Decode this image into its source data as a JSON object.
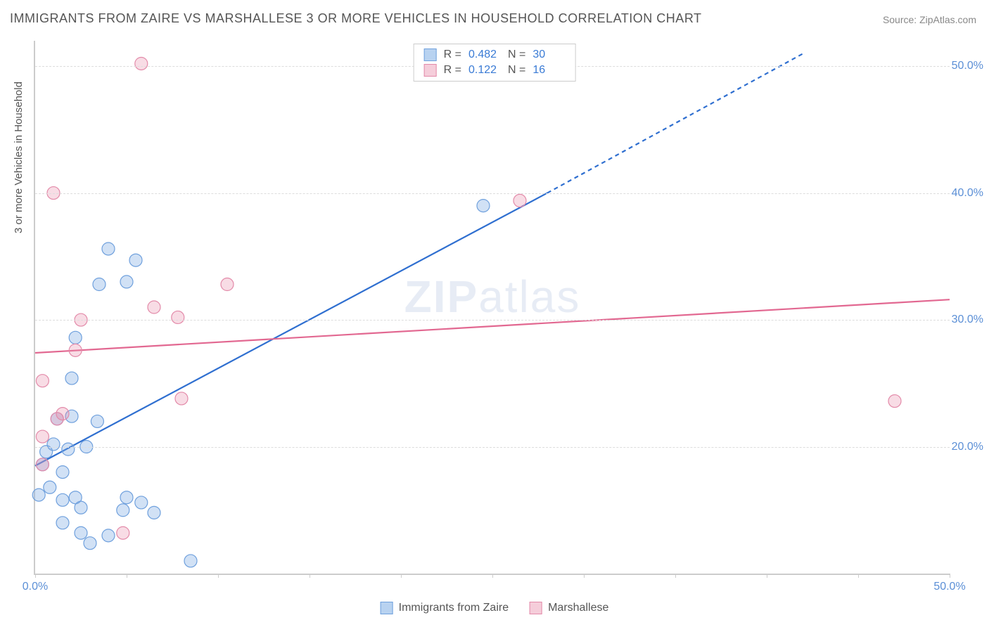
{
  "title": "IMMIGRANTS FROM ZAIRE VS MARSHALLESE 3 OR MORE VEHICLES IN HOUSEHOLD CORRELATION CHART",
  "source": "Source: ZipAtlas.com",
  "ylabel": "3 or more Vehicles in Household",
  "watermark_a": "ZIP",
  "watermark_b": "atlas",
  "chart": {
    "type": "scatter",
    "xlim": [
      0,
      50
    ],
    "ylim": [
      10,
      52
    ],
    "yticks": [
      20,
      30,
      40,
      50
    ],
    "ytick_labels": [
      "20.0%",
      "30.0%",
      "40.0%",
      "50.0%"
    ],
    "xticks": [
      0,
      5,
      10,
      15,
      20,
      25,
      30,
      35,
      40,
      45,
      50
    ],
    "xtick_labels": {
      "0": "0.0%",
      "50": "50.0%"
    },
    "background_color": "#ffffff",
    "grid_color": "#dddddd",
    "axis_color": "#cccccc",
    "tick_label_color": "#5b8fd6",
    "series": [
      {
        "name": "Immigrants from Zaire",
        "color_fill": "rgba(122,168,226,0.35)",
        "color_stroke": "#6fa0dd",
        "legend_swatch_fill": "#b8d2f0",
        "legend_swatch_stroke": "#6fa0dd",
        "r_value": "0.482",
        "n_value": "30",
        "marker_radius": 9,
        "trend": {
          "x1": 0,
          "y1": 18.5,
          "x2": 28,
          "y2": 40.0,
          "dash_x2": 42,
          "dash_y2": 51.0,
          "color": "#2f6fd0",
          "width": 2.2
        },
        "points": [
          [
            0.2,
            16.2
          ],
          [
            0.4,
            18.6
          ],
          [
            0.6,
            19.6
          ],
          [
            0.8,
            16.8
          ],
          [
            1.0,
            20.2
          ],
          [
            1.2,
            22.2
          ],
          [
            1.5,
            18.0
          ],
          [
            1.5,
            14.0
          ],
          [
            1.5,
            15.8
          ],
          [
            1.8,
            19.8
          ],
          [
            2.0,
            22.4
          ],
          [
            2.0,
            25.4
          ],
          [
            2.2,
            28.6
          ],
          [
            2.2,
            16.0
          ],
          [
            2.5,
            15.2
          ],
          [
            2.5,
            13.2
          ],
          [
            2.8,
            20.0
          ],
          [
            3.0,
            12.4
          ],
          [
            3.4,
            22.0
          ],
          [
            3.5,
            32.8
          ],
          [
            4.0,
            13.0
          ],
          [
            4.0,
            35.6
          ],
          [
            4.8,
            15.0
          ],
          [
            5.0,
            33.0
          ],
          [
            5.0,
            16.0
          ],
          [
            5.5,
            34.7
          ],
          [
            5.8,
            15.6
          ],
          [
            6.5,
            14.8
          ],
          [
            8.5,
            11.0
          ],
          [
            24.5,
            39.0
          ]
        ]
      },
      {
        "name": "Marshallese",
        "color_fill": "rgba(233,140,170,0.30)",
        "color_stroke": "#e38aa9",
        "legend_swatch_fill": "#f5cdda",
        "legend_swatch_stroke": "#e38aa9",
        "r_value": "0.122",
        "n_value": "16",
        "marker_radius": 9,
        "trend": {
          "x1": 0,
          "y1": 27.4,
          "x2": 50,
          "y2": 31.6,
          "color": "#e26891",
          "width": 2.2
        },
        "points": [
          [
            0.4,
            25.2
          ],
          [
            0.4,
            20.8
          ],
          [
            0.4,
            18.6
          ],
          [
            1.0,
            40.0
          ],
          [
            1.2,
            22.2
          ],
          [
            1.5,
            22.6
          ],
          [
            2.2,
            27.6
          ],
          [
            2.5,
            30.0
          ],
          [
            4.8,
            13.2
          ],
          [
            5.8,
            50.2
          ],
          [
            6.5,
            31.0
          ],
          [
            7.8,
            30.2
          ],
          [
            8.0,
            23.8
          ],
          [
            10.5,
            32.8
          ],
          [
            26.5,
            39.4
          ],
          [
            47.0,
            23.6
          ]
        ]
      }
    ]
  },
  "legend_top": {
    "r_label": "R =",
    "n_label": "N ="
  },
  "legend_bottom": {
    "items": [
      "Immigrants from Zaire",
      "Marshallese"
    ]
  }
}
